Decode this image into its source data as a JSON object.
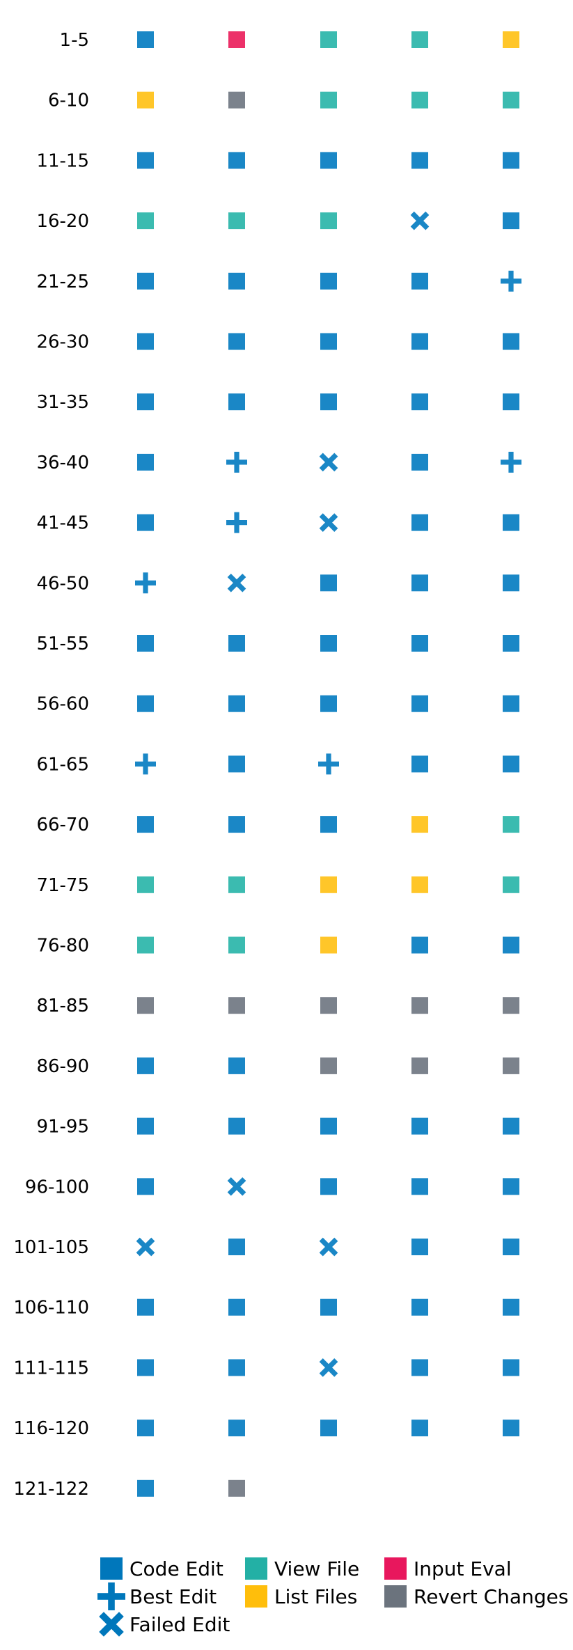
{
  "chart_data": {
    "type": "table",
    "title": "",
    "row_labels": [
      "1-5",
      "6-10",
      "11-15",
      "16-20",
      "21-25",
      "26-30",
      "31-35",
      "36-40",
      "41-45",
      "46-50",
      "51-55",
      "56-60",
      "61-65",
      "66-70",
      "71-75",
      "76-80",
      "81-85",
      "86-90",
      "91-95",
      "96-100",
      "101-105",
      "106-110",
      "111-115",
      "116-120",
      "121-122"
    ],
    "grid": [
      [
        "code_edit",
        "input_eval",
        "view_file",
        "view_file",
        "list_files"
      ],
      [
        "list_files",
        "revert_changes",
        "view_file",
        "view_file",
        "view_file"
      ],
      [
        "code_edit",
        "code_edit",
        "code_edit",
        "code_edit",
        "code_edit"
      ],
      [
        "view_file",
        "view_file",
        "view_file",
        "failed_edit",
        "code_edit"
      ],
      [
        "code_edit",
        "code_edit",
        "code_edit",
        "code_edit",
        "best_edit"
      ],
      [
        "code_edit",
        "code_edit",
        "code_edit",
        "code_edit",
        "code_edit"
      ],
      [
        "code_edit",
        "code_edit",
        "code_edit",
        "code_edit",
        "code_edit"
      ],
      [
        "code_edit",
        "best_edit",
        "failed_edit",
        "code_edit",
        "best_edit"
      ],
      [
        "code_edit",
        "best_edit",
        "failed_edit",
        "code_edit",
        "code_edit"
      ],
      [
        "best_edit",
        "failed_edit",
        "code_edit",
        "code_edit",
        "code_edit"
      ],
      [
        "code_edit",
        "code_edit",
        "code_edit",
        "code_edit",
        "code_edit"
      ],
      [
        "code_edit",
        "code_edit",
        "code_edit",
        "code_edit",
        "code_edit"
      ],
      [
        "best_edit",
        "code_edit",
        "best_edit",
        "code_edit",
        "code_edit"
      ],
      [
        "code_edit",
        "code_edit",
        "code_edit",
        "list_files",
        "view_file"
      ],
      [
        "view_file",
        "view_file",
        "list_files",
        "list_files",
        "view_file"
      ],
      [
        "view_file",
        "view_file",
        "list_files",
        "code_edit",
        "code_edit"
      ],
      [
        "revert_changes",
        "revert_changes",
        "revert_changes",
        "revert_changes",
        "revert_changes"
      ],
      [
        "code_edit",
        "code_edit",
        "revert_changes",
        "revert_changes",
        "revert_changes"
      ],
      [
        "code_edit",
        "code_edit",
        "code_edit",
        "code_edit",
        "code_edit"
      ],
      [
        "code_edit",
        "failed_edit",
        "code_edit",
        "code_edit",
        "code_edit"
      ],
      [
        "failed_edit",
        "code_edit",
        "failed_edit",
        "code_edit",
        "code_edit"
      ],
      [
        "code_edit",
        "code_edit",
        "code_edit",
        "code_edit",
        "code_edit"
      ],
      [
        "code_edit",
        "code_edit",
        "failed_edit",
        "code_edit",
        "code_edit"
      ],
      [
        "code_edit",
        "code_edit",
        "code_edit",
        "code_edit",
        "code_edit"
      ],
      [
        "code_edit",
        "revert_changes"
      ]
    ],
    "categories": {
      "code_edit": {
        "label": "Code Edit",
        "marker": "square",
        "color": "#1a87c6",
        "legend_color": "#0077bb"
      },
      "best_edit": {
        "label": "Best Edit",
        "marker": "plus",
        "color": "#1a87c6",
        "legend_color": "#0077bb"
      },
      "failed_edit": {
        "label": "Failed Edit",
        "marker": "x",
        "color": "#1a87c6",
        "legend_color": "#0077bb"
      },
      "view_file": {
        "label": "View File",
        "marker": "square",
        "color": "#3bbbb0",
        "legend_color": "#23b0a5"
      },
      "list_files": {
        "label": "List Files",
        "marker": "square",
        "color": "#ffc629",
        "legend_color": "#ffbe0b"
      },
      "input_eval": {
        "label": "Input Eval",
        "marker": "square",
        "color": "#ec3169",
        "legend_color": "#e8175d"
      },
      "revert_changes": {
        "label": "Revert Changes",
        "marker": "square",
        "color": "#7b828c",
        "legend_color": "#6b737d"
      }
    },
    "legend": {
      "placement": "bottom",
      "columns": [
        [
          "code_edit",
          "best_edit",
          "failed_edit"
        ],
        [
          "view_file",
          "list_files"
        ],
        [
          "input_eval",
          "revert_changes"
        ]
      ]
    },
    "grid_lines": false
  }
}
